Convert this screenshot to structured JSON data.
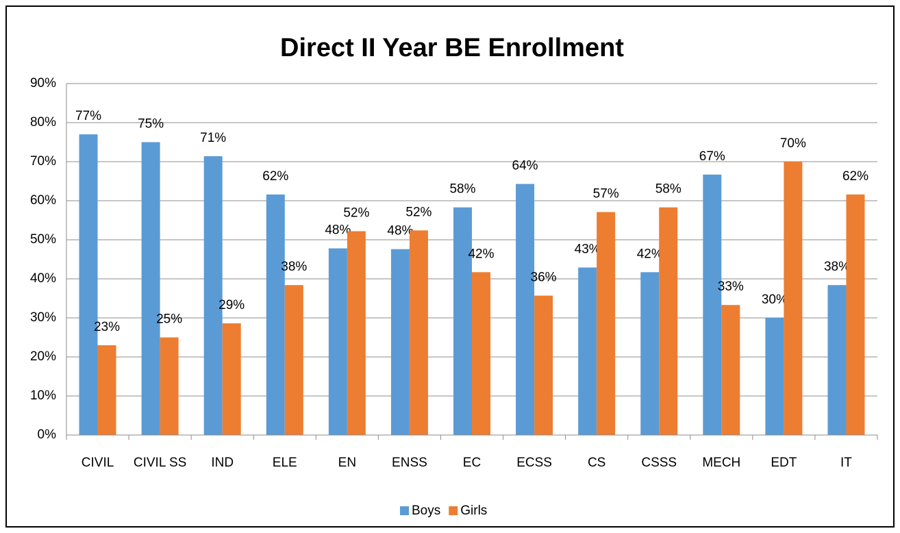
{
  "chart_data": {
    "type": "bar",
    "title": "Direct II Year BE Enrollment",
    "categories": [
      "CIVIL",
      "CIVIL SS",
      "IND",
      "ELE",
      "EN",
      "ENSS",
      "EC",
      "ECSS",
      "CS",
      "CSSS",
      "MECH",
      "EDT",
      "IT"
    ],
    "series": [
      {
        "name": "Boys",
        "color": "#5b9bd5",
        "values": [
          77,
          75,
          71.4,
          61.6,
          47.8,
          47.6,
          58.3,
          64.3,
          42.9,
          41.7,
          66.7,
          30,
          38.4
        ],
        "value_labels": [
          "77%",
          "75%",
          "71%",
          "62%",
          "48%",
          "48%",
          "58%",
          "64%",
          "43%",
          "42%",
          "67%",
          "30%",
          "38%"
        ]
      },
      {
        "name": "Girls",
        "color": "#ed7d31",
        "values": [
          23,
          25,
          28.6,
          38.4,
          52.2,
          52.4,
          41.7,
          35.7,
          57.1,
          58.3,
          33.3,
          70,
          61.6
        ],
        "value_labels": [
          "23%",
          "25%",
          "29%",
          "38%",
          "52%",
          "52%",
          "42%",
          "36%",
          "57%",
          "58%",
          "33%",
          "70%",
          "62%"
        ]
      }
    ],
    "ylim": [
      0,
      90
    ],
    "yticks": [
      {
        "value": 0,
        "label": "0%"
      },
      {
        "value": 10,
        "label": "10%"
      },
      {
        "value": 20,
        "label": "20%"
      },
      {
        "value": 30,
        "label": "30%"
      },
      {
        "value": 40,
        "label": "40%"
      },
      {
        "value": 50,
        "label": "50%"
      },
      {
        "value": 60,
        "label": "60%"
      },
      {
        "value": 70,
        "label": "70%"
      },
      {
        "value": 80,
        "label": "80%"
      },
      {
        "value": 90,
        "label": "90%"
      }
    ],
    "grid": true,
    "legend": "bottom"
  }
}
